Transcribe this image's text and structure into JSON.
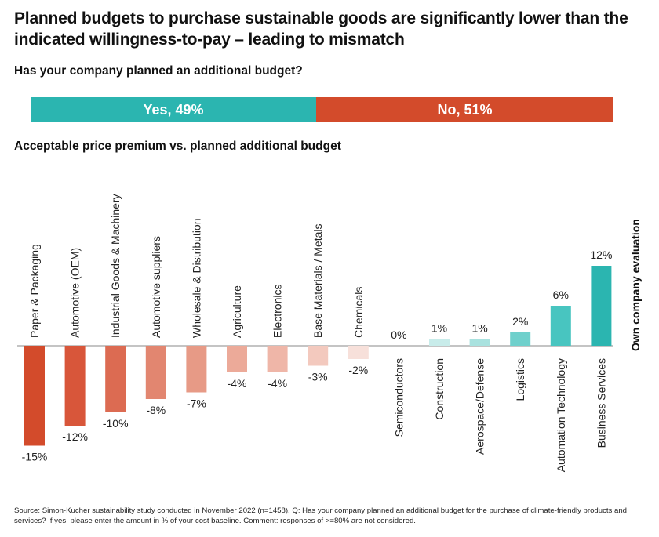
{
  "title": "Planned budgets to purchase sustainable goods are significantly lower than the indicated willingness-to-pay – leading to mismatch",
  "question1": "Has your company planned an additional budget?",
  "split": {
    "yes": {
      "label": "Yes, 49%",
      "value": 49,
      "color": "#2bb5b0"
    },
    "no": {
      "label": "No, 51%",
      "value": 51,
      "color": "#d34b2b"
    }
  },
  "question2": "Acceptable price premium vs. planned additional budget",
  "source": "Source: Simon-Kucher sustainability study conducted in November 2022 (n=1458). Q: Has your company planned an additional budget for the purchase of climate-friendly products and services? If yes, please enter the amount in % of your cost baseline. Comment: responses of >=80% are not considered.",
  "chart_data": {
    "type": "bar",
    "categories": [
      "Paper & Packaging",
      "Automotive (OEM)",
      "Industrial Goods & Machinery",
      "Automotive suppliers",
      "Wholesale & Distribution",
      "Agriculture",
      "Electronics",
      "Base Materials / Metals",
      "Chemicals",
      "Semiconductors",
      "Construction",
      "Aerospace/Defense",
      "Logistics",
      "Automation Technology",
      "Business Services"
    ],
    "values": [
      -15,
      -12,
      -10,
      -8,
      -7,
      -4,
      -4,
      -3,
      -2,
      0,
      1,
      1,
      2,
      6,
      12
    ],
    "value_labels": [
      "-15%",
      "-12%",
      "-10%",
      "-8%",
      "-7%",
      "-4%",
      "-4%",
      "-3%",
      "-2%",
      "0%",
      "1%",
      "1%",
      "2%",
      "6%",
      "12%"
    ],
    "colors": [
      "#d34b2b",
      "#d8563a",
      "#dc6b52",
      "#e28670",
      "#e79a86",
      "#ecaa99",
      "#efb6a8",
      "#f3c9be",
      "#f7e0da",
      "#ffffff",
      "#c8ecea",
      "#a9e2df",
      "#6fd0cc",
      "#48c5c0",
      "#2bb5b0"
    ],
    "ylabel": "Own company evaluation"
  }
}
